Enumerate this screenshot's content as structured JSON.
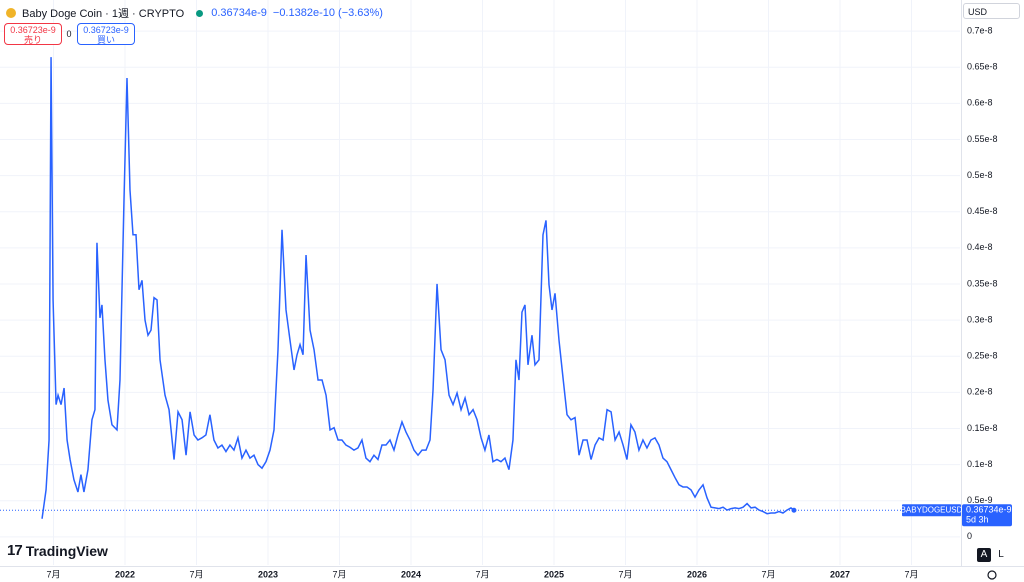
{
  "header": {
    "symbol": "Baby Doge Coin · 1週 · CRYPTO",
    "price": "0.36734e-9",
    "change": "−0.1382e-10 (−3.63%)",
    "sell_price": "0.36723e-9",
    "sell_label": "売り",
    "spread": "0",
    "buy_price": "0.36723e-9",
    "buy_label": "買い",
    "currency": "USD",
    "logo": "TradingView",
    "auto_button": "A",
    "log_button": "L"
  },
  "chart_data": {
    "type": "line",
    "price_label": {
      "value": "0.36734e-9",
      "countdown": "5d 3h"
    },
    "xlim": [
      2021.126,
      2027.839
    ],
    "xticks": [
      {
        "value": 2021.5,
        "label": "7月"
      },
      2022,
      {
        "value": 2022.5,
        "label": "7月"
      },
      2023,
      {
        "value": 2023.5,
        "label": "7月"
      },
      2024,
      {
        "value": 2024.5,
        "label": "7月"
      },
      2025,
      {
        "value": 2025.5,
        "label": "7月"
      },
      2026,
      {
        "value": 2026.5,
        "label": "7月"
      },
      2027,
      {
        "value": 2027.5,
        "label": "7月"
      }
    ],
    "ylim": [
      -3.9e-10,
      7.43e-09
    ],
    "yticks": [
      0,
      {
        "value": 5e-10,
        "label": "0.5e-9"
      },
      {
        "value": 1e-09,
        "label": "0.1e-8"
      },
      {
        "value": 1.5e-09,
        "label": "0.15e-8"
      },
      {
        "value": 2e-09,
        "label": "0.2e-8"
      },
      {
        "value": 2.5e-09,
        "label": "0.25e-8"
      },
      {
        "value": 3e-09,
        "label": "0.3e-8"
      },
      {
        "value": 3.5e-09,
        "label": "0.35e-8"
      },
      {
        "value": 4e-09,
        "label": "0.4e-8"
      },
      {
        "value": 4.5e-09,
        "label": "0.45e-8"
      },
      {
        "value": 5e-09,
        "label": "0.5e-8"
      },
      {
        "value": 5.5e-09,
        "label": "0.55e-8"
      },
      {
        "value": 6e-09,
        "label": "0.6e-8"
      },
      {
        "value": 6.5e-09,
        "label": "0.65e-8"
      },
      {
        "value": 7e-09,
        "label": "0.7e-8"
      }
    ],
    "grid": true,
    "series": [
      {
        "name": "BABYDOGEUSD",
        "color": "#2962ff",
        "x": [
          2021.42,
          2021.448,
          2021.469,
          2021.483,
          2021.497,
          2021.518,
          2021.532,
          2021.553,
          2021.574,
          2021.595,
          2021.616,
          2021.643,
          2021.671,
          2021.692,
          2021.713,
          2021.741,
          2021.769,
          2021.79,
          2021.804,
          2021.825,
          2021.839,
          2021.86,
          2021.881,
          2021.909,
          2021.944,
          2021.965,
          2021.993,
          2022.014,
          2022.035,
          2022.056,
          2022.077,
          2022.098,
          2022.119,
          2022.14,
          2022.161,
          2022.182,
          2022.203,
          2022.224,
          2022.245,
          2022.28,
          2022.308,
          2022.343,
          2022.371,
          2022.399,
          2022.427,
          2022.455,
          2022.483,
          2022.51,
          2022.538,
          2022.566,
          2022.594,
          2022.622,
          2022.65,
          2022.678,
          2022.706,
          2022.734,
          2022.762,
          2022.79,
          2022.818,
          2022.846,
          2022.874,
          2022.902,
          2022.93,
          2022.958,
          2022.986,
          2023.014,
          2023.042,
          2023.07,
          2023.098,
          2023.126,
          2023.154,
          2023.182,
          2023.203,
          2023.224,
          2023.245,
          2023.266,
          2023.294,
          2023.322,
          2023.35,
          2023.378,
          2023.406,
          2023.434,
          2023.462,
          2023.49,
          2023.517,
          2023.545,
          2023.573,
          2023.601,
          2023.629,
          2023.657,
          2023.685,
          2023.713,
          2023.741,
          2023.769,
          2023.797,
          2023.825,
          2023.853,
          2023.881,
          2023.909,
          2023.937,
          2023.965,
          2023.993,
          2024.021,
          2024.049,
          2024.077,
          2024.105,
          2024.133,
          2024.154,
          2024.182,
          2024.21,
          2024.238,
          2024.266,
          2024.294,
          2024.322,
          2024.35,
          2024.378,
          2024.406,
          2024.434,
          2024.462,
          2024.49,
          2024.517,
          2024.545,
          2024.573,
          2024.601,
          2024.629,
          2024.657,
          2024.685,
          2024.713,
          2024.734,
          2024.755,
          2024.776,
          2024.797,
          2024.818,
          2024.846,
          2024.867,
          2024.895,
          2024.923,
          2024.944,
          2024.965,
          2024.986,
          2025.007,
          2025.035,
          2025.063,
          2025.091,
          2025.119,
          2025.147,
          2025.175,
          2025.203,
          2025.231,
          2025.259,
          2025.287,
          2025.315,
          2025.343,
          2025.371,
          2025.399,
          2025.427,
          2025.455,
          2025.483,
          2025.51,
          2025.538,
          2025.566,
          2025.594,
          2025.622,
          2025.65,
          2025.678,
          2025.706,
          2025.734,
          2025.762,
          2025.79,
          2025.818,
          2025.846,
          2025.874,
          2025.902,
          2025.93,
          2025.958,
          2025.986,
          2026.014,
          2026.042,
          2026.07,
          2026.098,
          2026.126,
          2026.154,
          2026.182,
          2026.21,
          2026.238,
          2026.266,
          2026.294,
          2026.322,
          2026.35,
          2026.378,
          2026.406,
          2026.434,
          2026.462,
          2026.49,
          2026.517,
          2026.545,
          2026.573,
          2026.601,
          2026.629,
          2026.657,
          2026.678
        ],
        "values": [
          2.5e-10,
          6.5e-10,
          1.34e-09,
          6.64e-09,
          3.28e-09,
          1.83e-09,
          1.96e-09,
          1.83e-09,
          2.06e-09,
          1.34e-09,
          1.07e-09,
          7.9e-10,
          6.2e-10,
          8.6e-10,
          6.2e-10,
          9.3e-10,
          1.62e-09,
          1.76e-09,
          4.07e-09,
          3.03e-09,
          3.21e-09,
          2.45e-09,
          1.89e-09,
          1.55e-09,
          1.48e-09,
          2.17e-09,
          4.66e-09,
          6.35e-09,
          4.8e-09,
          4.18e-09,
          4.18e-09,
          3.42e-09,
          3.55e-09,
          3e-09,
          2.79e-09,
          2.86e-09,
          3.31e-09,
          3.28e-09,
          2.45e-09,
          1.96e-09,
          1.76e-09,
          1.07e-09,
          1.73e-09,
          1.62e-09,
          1.13e-09,
          1.73e-09,
          1.41e-09,
          1.34e-09,
          1.37e-09,
          1.41e-09,
          1.69e-09,
          1.34e-09,
          1.23e-09,
          1.27e-09,
          1.18e-09,
          1.27e-09,
          1.2e-09,
          1.37e-09,
          1.09e-09,
          1.2e-09,
          1.09e-09,
          1.13e-09,
          1e-09,
          9.5e-10,
          1.04e-09,
          1.2e-09,
          1.48e-09,
          2.59e-09,
          4.25e-09,
          3.14e-09,
          2.72e-09,
          2.31e-09,
          2.52e-09,
          2.66e-09,
          2.52e-09,
          3.9e-09,
          2.86e-09,
          2.59e-09,
          2.17e-09,
          2.17e-09,
          1.96e-09,
          1.48e-09,
          1.51e-09,
          1.34e-09,
          1.34e-09,
          1.27e-09,
          1.24e-09,
          1.2e-09,
          1.23e-09,
          1.34e-09,
          1.09e-09,
          1.04e-09,
          1.13e-09,
          1.07e-09,
          1.27e-09,
          1.27e-09,
          1.34e-09,
          1.2e-09,
          1.41e-09,
          1.59e-09,
          1.45e-09,
          1.34e-09,
          1.2e-09,
          1.13e-09,
          1.2e-09,
          1.2e-09,
          1.34e-09,
          2.03e-09,
          3.5e-09,
          2.59e-09,
          2.45e-09,
          1.96e-09,
          1.83e-09,
          1.99e-09,
          1.76e-09,
          1.92e-09,
          1.69e-09,
          1.76e-09,
          1.62e-09,
          1.37e-09,
          1.2e-09,
          1.41e-09,
          1.04e-09,
          1.07e-09,
          1.04e-09,
          1.09e-09,
          9.3e-10,
          1.34e-09,
          2.45e-09,
          2.17e-09,
          3.11e-09,
          3.21e-09,
          2.38e-09,
          2.79e-09,
          2.38e-09,
          2.45e-09,
          4.18e-09,
          4.38e-09,
          3.49e-09,
          3.14e-09,
          3.37e-09,
          2.72e-09,
          2.2e-09,
          1.69e-09,
          1.62e-09,
          1.65e-09,
          1.13e-09,
          1.34e-09,
          1.34e-09,
          1.07e-09,
          1.27e-09,
          1.37e-09,
          1.34e-09,
          1.76e-09,
          1.73e-09,
          1.34e-09,
          1.45e-09,
          1.27e-09,
          1.07e-09,
          1.55e-09,
          1.45e-09,
          1.2e-09,
          1.34e-09,
          1.23e-09,
          1.34e-09,
          1.37e-09,
          1.27e-09,
          1.09e-09,
          1.04e-09,
          9.3e-10,
          8.2e-10,
          7.2e-10,
          6.9e-10,
          6.9e-10,
          6.5e-10,
          5.5e-10,
          6.5e-10,
          7.2e-10,
          5.4e-10,
          4.1e-10,
          4e-10,
          3.9e-10,
          4.1e-10,
          3.7e-10,
          3.9e-10,
          4e-10,
          3.9e-10,
          4.1e-10,
          4.6e-10,
          4e-10,
          4.1e-10,
          3.7e-10,
          3.5e-10,
          3.2e-10,
          3.3e-10,
          3.3e-10,
          3.5e-10,
          3.3e-10,
          3.7e-10,
          4e-10,
          3.6734e-10
        ]
      }
    ]
  }
}
